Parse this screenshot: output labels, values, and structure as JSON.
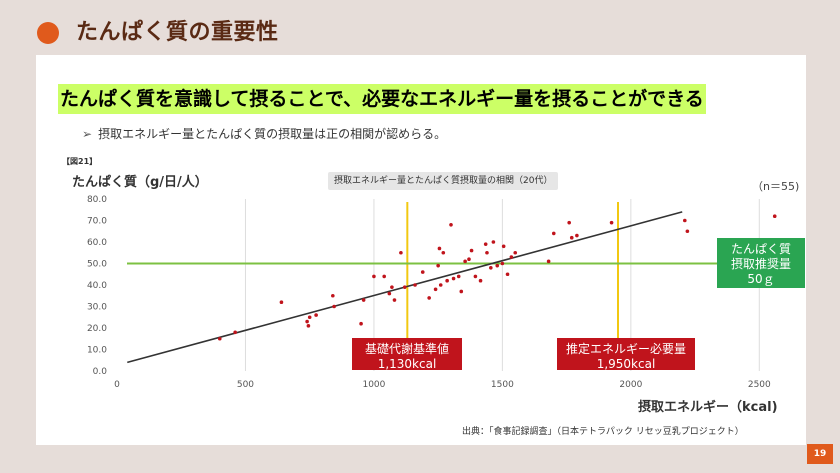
{
  "header": {
    "title": "たんぱく質の重要性"
  },
  "headline": "たんぱく質を意識して摂ることで、必要なエネルギー量を摂ることができる",
  "bullet": {
    "marker": "➢",
    "text": "摂取エネルギー量とたんぱく質の摂取量は正の相関が認めらる。"
  },
  "figure_label": "【図21】",
  "source": "出典：「食事記録調査」（日本テトラパック リセッ豆乳プロジェクト）",
  "page_number": "19",
  "colors": {
    "accent": "#e05a1c",
    "headline_highlight": "#ccff66",
    "points": "#c0141c",
    "trend": "#333333",
    "vertical_lines": "#f2c811",
    "horizontal_line": "#7cc142",
    "red_annotation": "#c0141c",
    "green_annotation": "#2aa552"
  },
  "chart_data": {
    "type": "scatter",
    "title": "摂取エネルギー量とたんぱく質摂取量の相関（20代）",
    "xlabel": "摂取エネルギー（kcal)",
    "ylabel": "たんぱく質（g/日/人）",
    "note": "（n＝55)",
    "xlim": [
      0,
      2600
    ],
    "ylim": [
      0,
      80
    ],
    "xticks": [
      0,
      500,
      1000,
      1500,
      2000,
      2500
    ],
    "yticks": [
      "0.0",
      "10.0",
      "20.0",
      "30.0",
      "40.0",
      "50.0",
      "60.0",
      "70.0",
      "80.0"
    ],
    "grid": "vertical",
    "points": [
      [
        400,
        15
      ],
      [
        460,
        18
      ],
      [
        640,
        32
      ],
      [
        740,
        23
      ],
      [
        745,
        21
      ],
      [
        750,
        25
      ],
      [
        775,
        26
      ],
      [
        840,
        35
      ],
      [
        845,
        30
      ],
      [
        950,
        22
      ],
      [
        960,
        33
      ],
      [
        1000,
        44
      ],
      [
        1040,
        44
      ],
      [
        1060,
        36
      ],
      [
        1070,
        39
      ],
      [
        1080,
        33
      ],
      [
        1105,
        55
      ],
      [
        1120,
        39
      ],
      [
        1160,
        40
      ],
      [
        1190,
        46
      ],
      [
        1215,
        34
      ],
      [
        1240,
        38
      ],
      [
        1250,
        49
      ],
      [
        1255,
        57
      ],
      [
        1260,
        40
      ],
      [
        1270,
        55
      ],
      [
        1285,
        42
      ],
      [
        1300,
        68
      ],
      [
        1310,
        43
      ],
      [
        1330,
        44
      ],
      [
        1340,
        37
      ],
      [
        1355,
        51
      ],
      [
        1370,
        52
      ],
      [
        1380,
        56
      ],
      [
        1395,
        44
      ],
      [
        1415,
        42
      ],
      [
        1435,
        59
      ],
      [
        1440,
        55
      ],
      [
        1455,
        48
      ],
      [
        1465,
        60
      ],
      [
        1480,
        49
      ],
      [
        1500,
        50
      ],
      [
        1505,
        58
      ],
      [
        1520,
        45
      ],
      [
        1535,
        53
      ],
      [
        1550,
        55
      ],
      [
        1680,
        51
      ],
      [
        1700,
        64
      ],
      [
        1760,
        69
      ],
      [
        1770,
        62
      ],
      [
        1790,
        63
      ],
      [
        1925,
        69
      ],
      [
        2210,
        70
      ],
      [
        2220,
        65
      ],
      [
        2560,
        72
      ]
    ],
    "trendline": {
      "from": [
        40,
        4
      ],
      "to": [
        2200,
        74
      ]
    },
    "vertical_lines": [
      1130,
      1950
    ],
    "horizontal_line": 50,
    "annotations": [
      {
        "text": [
          "基礎代謝基準値",
          "1,130kcal"
        ],
        "color": "red"
      },
      {
        "text": [
          "推定エネルギー必要量",
          "1,950kcal"
        ],
        "color": "red"
      },
      {
        "text": [
          "たんぱく質",
          "摂取推奨量",
          "50ｇ"
        ],
        "color": "green"
      }
    ]
  }
}
